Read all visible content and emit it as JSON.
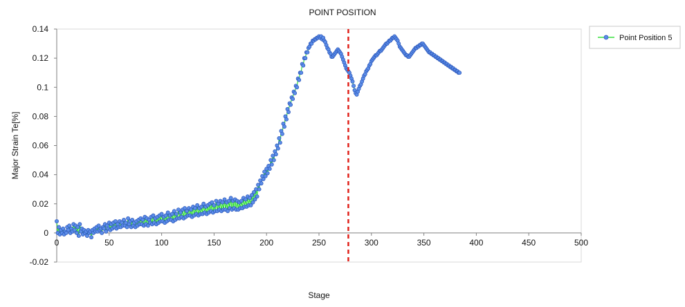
{
  "chart_data": {
    "type": "line",
    "title": "POINT POSITION",
    "xlabel": "Stage",
    "ylabel": "Major Strain Te[%]",
    "xlim": [
      0,
      500
    ],
    "ylim": [
      -0.02,
      0.14
    ],
    "x_ticks": [
      "0",
      "50",
      "100",
      "150",
      "200",
      "250",
      "300",
      "350",
      "400",
      "450",
      "500"
    ],
    "y_ticks": [
      "0.14",
      "0.12",
      "0.1",
      "0.08",
      "0.06",
      "0.04",
      "0.02",
      "0",
      "-0.02"
    ],
    "grid": "none",
    "legend_position": "right",
    "reference_line": {
      "x": 278,
      "color": "#e0201a",
      "style": "dashed"
    },
    "series": [
      {
        "name": "Point Position 5",
        "line_color": "#35e03a",
        "marker_color": "#5b8de8",
        "marker_edge_color": "#2b55b8",
        "x_start": 0,
        "x_step": 1,
        "values": [
          0.008,
          0.0,
          0.004,
          -0.001,
          0.002,
          0.0,
          0.003,
          -0.001,
          0.001,
          0.0,
          0.004,
          0.002,
          0.005,
          0.0,
          0.003,
          0.001,
          0.006,
          0.002,
          0.005,
          0.0,
          0.004,
          -0.002,
          0.006,
          0.001,
          0.003,
          -0.001,
          0.002,
          0.0,
          0.001,
          -0.002,
          0.002,
          0.0,
          0.001,
          -0.003,
          0.002,
          0.0,
          0.003,
          0.001,
          0.004,
          0.001,
          0.005,
          0.002,
          0.003,
          0.0,
          0.004,
          0.003,
          0.006,
          0.001,
          0.005,
          0.003,
          0.007,
          0.002,
          0.006,
          0.003,
          0.007,
          0.004,
          0.008,
          0.003,
          0.006,
          0.004,
          0.008,
          0.004,
          0.007,
          0.005,
          0.009,
          0.005,
          0.007,
          0.004,
          0.01,
          0.006,
          0.008,
          0.004,
          0.009,
          0.005,
          0.007,
          0.004,
          0.008,
          0.005,
          0.009,
          0.006,
          0.01,
          0.006,
          0.009,
          0.005,
          0.011,
          0.006,
          0.01,
          0.005,
          0.009,
          0.007,
          0.011,
          0.006,
          0.012,
          0.007,
          0.01,
          0.006,
          0.011,
          0.007,
          0.012,
          0.008,
          0.013,
          0.008,
          0.011,
          0.007,
          0.012,
          0.008,
          0.014,
          0.009,
          0.012,
          0.009,
          0.013,
          0.008,
          0.015,
          0.009,
          0.013,
          0.01,
          0.016,
          0.01,
          0.014,
          0.011,
          0.016,
          0.01,
          0.017,
          0.011,
          0.015,
          0.012,
          0.017,
          0.012,
          0.016,
          0.011,
          0.018,
          0.012,
          0.017,
          0.013,
          0.019,
          0.012,
          0.017,
          0.013,
          0.018,
          0.013,
          0.02,
          0.014,
          0.018,
          0.013,
          0.019,
          0.014,
          0.02,
          0.015,
          0.021,
          0.014,
          0.019,
          0.015,
          0.022,
          0.015,
          0.02,
          0.016,
          0.022,
          0.015,
          0.021,
          0.016,
          0.023,
          0.016,
          0.021,
          0.015,
          0.022,
          0.017,
          0.024,
          0.016,
          0.022,
          0.017,
          0.023,
          0.016,
          0.022,
          0.016,
          0.021,
          0.017,
          0.022,
          0.017,
          0.024,
          0.018,
          0.023,
          0.018,
          0.025,
          0.019,
          0.024,
          0.019,
          0.026,
          0.021,
          0.028,
          0.023,
          0.03,
          0.025,
          0.033,
          0.03,
          0.036,
          0.034,
          0.039,
          0.037,
          0.042,
          0.039,
          0.044,
          0.041,
          0.046,
          0.044,
          0.05,
          0.047,
          0.053,
          0.05,
          0.056,
          0.054,
          0.06,
          0.058,
          0.065,
          0.062,
          0.07,
          0.068,
          0.075,
          0.073,
          0.08,
          0.078,
          0.085,
          0.083,
          0.089,
          0.088,
          0.093,
          0.092,
          0.097,
          0.096,
          0.101,
          0.1,
          0.106,
          0.105,
          0.11,
          0.11,
          0.116,
          0.115,
          0.12,
          0.12,
          0.124,
          0.124,
          0.127,
          0.128,
          0.13,
          0.13,
          0.132,
          0.132,
          0.133,
          0.133,
          0.134,
          0.134,
          0.135,
          0.134,
          0.135,
          0.133,
          0.134,
          0.132,
          0.131,
          0.129,
          0.127,
          0.126,
          0.124,
          0.123,
          0.121,
          0.121,
          0.122,
          0.123,
          0.124,
          0.125,
          0.126,
          0.125,
          0.124,
          0.123,
          0.121,
          0.119,
          0.117,
          0.115,
          0.113,
          0.112,
          0.111,
          0.11,
          0.108,
          0.106,
          0.104,
          0.101,
          0.098,
          0.096,
          0.095,
          0.097,
          0.099,
          0.101,
          0.102,
          0.104,
          0.106,
          0.108,
          0.109,
          0.111,
          0.112,
          0.113,
          0.115,
          0.116,
          0.118,
          0.119,
          0.12,
          0.121,
          0.122,
          0.122,
          0.123,
          0.124,
          0.125,
          0.125,
          0.126,
          0.127,
          0.128,
          0.129,
          0.13,
          0.13,
          0.131,
          0.132,
          0.132,
          0.133,
          0.134,
          0.134,
          0.135,
          0.134,
          0.133,
          0.132,
          0.13,
          0.128,
          0.127,
          0.126,
          0.125,
          0.124,
          0.123,
          0.122,
          0.122,
          0.121,
          0.121,
          0.122,
          0.123,
          0.124,
          0.125,
          0.126,
          0.127,
          0.127,
          0.128,
          0.128,
          0.129,
          0.129,
          0.13,
          0.13,
          0.129,
          0.128,
          0.127,
          0.126,
          0.125,
          0.124,
          0.124,
          0.123,
          0.123,
          0.122,
          0.122,
          0.121,
          0.121,
          0.12,
          0.12,
          0.119,
          0.119,
          0.118,
          0.118,
          0.117,
          0.117,
          0.116,
          0.116,
          0.115,
          0.115,
          0.114,
          0.114,
          0.113,
          0.113,
          0.112,
          0.112,
          0.111,
          0.111,
          0.11,
          0.11
        ]
      }
    ]
  }
}
